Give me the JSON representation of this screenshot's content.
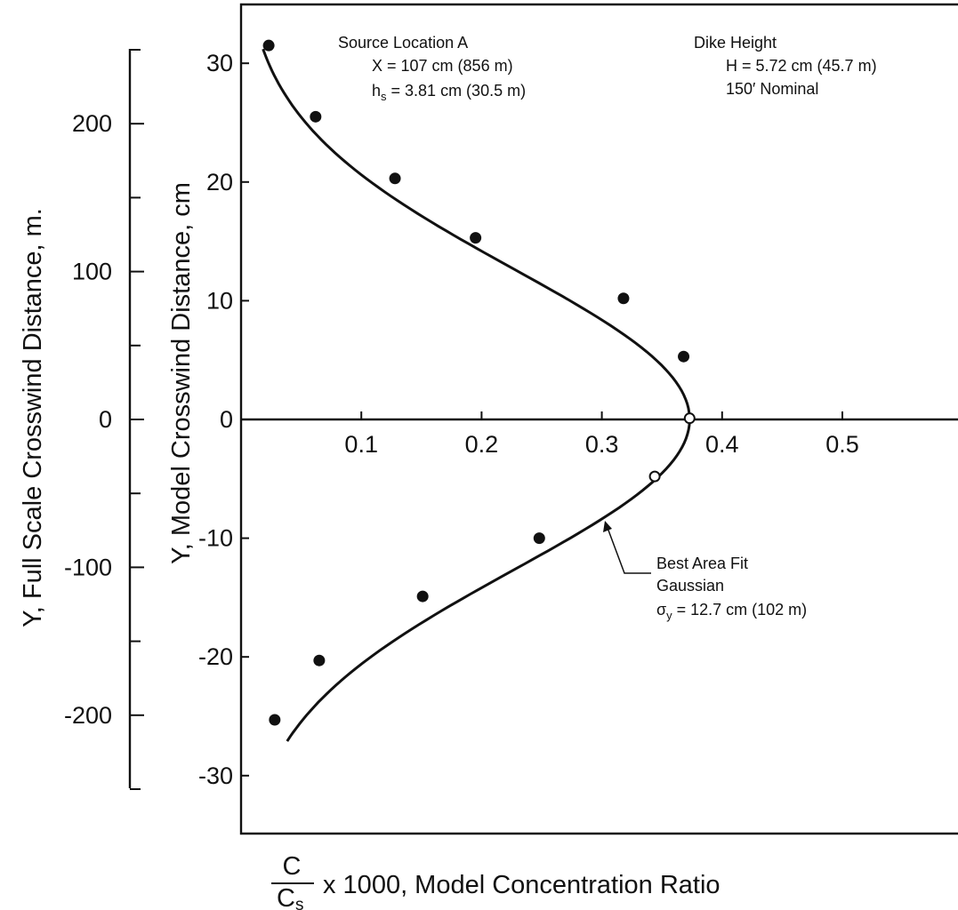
{
  "chart_data": {
    "type": "scatter",
    "x_axis": {
      "min": 0,
      "max": 0.6,
      "ticks": [
        0.1,
        0.2,
        0.3,
        0.4,
        0.5
      ],
      "tick_labels": [
        "0.1",
        "0.2",
        "0.3",
        "0.4",
        "0.5"
      ],
      "label_fraction_numerator": "C",
      "label_fraction_denominator": "C",
      "label_fraction_denominator_sub": "s",
      "label_rest": "x 1000, Model Concentration Ratio"
    },
    "y_axis": {
      "min": -35,
      "max": 35,
      "ticks": [
        30,
        20,
        10,
        0,
        -10,
        -20,
        -30
      ],
      "tick_labels": [
        "30",
        "20",
        "10",
        "0",
        "-10",
        "-20",
        "-30"
      ],
      "label": "Y, Model Crosswind Distance, cm"
    },
    "y2_axis": {
      "min": -250,
      "max": 250,
      "ticks": [
        200,
        100,
        0,
        -100,
        -200
      ],
      "tick_labels": [
        "200",
        "100",
        "0",
        "-100",
        "-200"
      ],
      "minor_ticks": [
        250,
        150,
        50,
        -50,
        -150,
        -250
      ],
      "label": "Y, Full Scale Crosswind Distance, m."
    },
    "points": [
      {
        "x": 0.023,
        "y": 31.5
      },
      {
        "x": 0.062,
        "y": 25.5
      },
      {
        "x": 0.128,
        "y": 20.3
      },
      {
        "x": 0.195,
        "y": 15.3
      },
      {
        "x": 0.318,
        "y": 10.2
      },
      {
        "x": 0.368,
        "y": 5.3
      },
      {
        "x": 0.373,
        "y": 0.1,
        "open": true
      },
      {
        "x": 0.344,
        "y": -4.8,
        "open": true
      },
      {
        "x": 0.248,
        "y": -10.0
      },
      {
        "x": 0.151,
        "y": -14.9
      },
      {
        "x": 0.065,
        "y": -20.3
      },
      {
        "x": 0.028,
        "y": -25.3
      }
    ],
    "fit_curve": {
      "peak": 0.373,
      "sigma_cm": 12.7,
      "y_start": 31.2,
      "y_end": -27.1
    },
    "grid": false
  },
  "annotations": {
    "source": {
      "title": "Source Location A",
      "x_line": "X = 107 cm (856 m)",
      "h_prefix": "h",
      "h_sub": "s",
      "h_rest": " = 3.81 cm (30.5 m)"
    },
    "dike": {
      "title": "Dike Height",
      "h_line": "H = 5.72 cm (45.7 m)",
      "nominal": "150′ Nominal"
    },
    "fit": {
      "line1": "Best Area Fit",
      "line2": "Gaussian",
      "sigma_symbol": "σ",
      "sigma_sub": "y",
      "sigma_rest": " = 12.7 cm (102 m)"
    }
  }
}
